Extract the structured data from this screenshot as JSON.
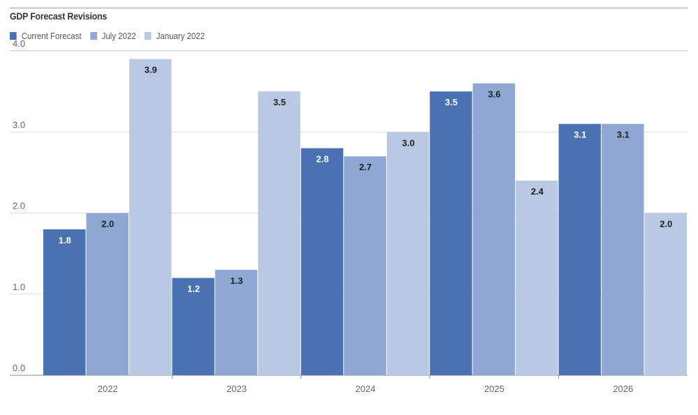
{
  "chart_data": {
    "type": "bar",
    "title": "GDP Forecast Revisions",
    "categories": [
      "2022",
      "2023",
      "2024",
      "2025",
      "2026"
    ],
    "series": [
      {
        "name": "Current Forecast",
        "color": "#4a72b2",
        "values": [
          1.8,
          1.2,
          2.8,
          3.5,
          3.1
        ]
      },
      {
        "name": "July 2022",
        "color": "#8fa8d3",
        "values": [
          2.0,
          1.3,
          2.7,
          3.6,
          3.1
        ]
      },
      {
        "name": "January 2022",
        "color": "#b9c9e3",
        "values": [
          3.9,
          3.5,
          3.0,
          2.4,
          2.0
        ]
      }
    ],
    "y_ticks": [
      "0.0",
      "1.0",
      "2.0",
      "3.0",
      "4.0"
    ],
    "ylim": [
      0,
      4.0
    ],
    "grid": true,
    "legend_position": "top-left"
  }
}
